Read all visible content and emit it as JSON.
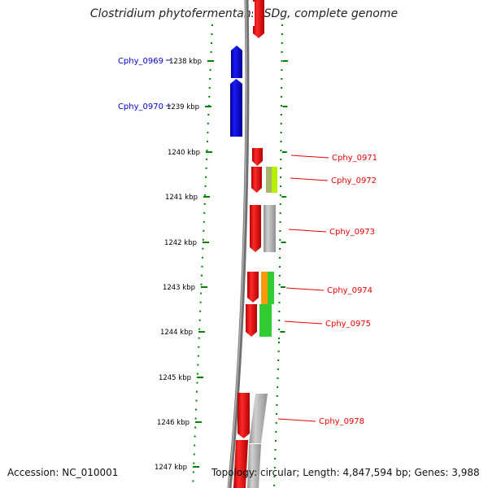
{
  "title": "Clostridium phytofermentans ISDg, complete genome",
  "accession": "Accession: NC_010001",
  "topology": "Topology: circular; Length: 4,847,594 bp; Genes: 3,988",
  "ticks": [
    "1238 kbp",
    "1239 kbp",
    "1240 kbp",
    "1241 kbp",
    "1242 kbp",
    "1243 kbp",
    "1244 kbp",
    "1245 kbp",
    "1246 kbp",
    "1247 kbp"
  ],
  "colors": {
    "forward_gene": "#ff0000",
    "reverse_gene": "#0000e0",
    "tick": "#008000",
    "backbone": "#808080",
    "label_reverse": "#0000cc",
    "label_forward": "#ee0000"
  },
  "genes": [
    {
      "label": "Cphy_0969",
      "strand": "reverse",
      "cog_colors": []
    },
    {
      "label": "Cphy_0970",
      "strand": "reverse",
      "cog_colors": []
    },
    {
      "label": "Cphy_0971",
      "strand": "forward",
      "cog_colors": []
    },
    {
      "label": "Cphy_0972",
      "strand": "forward",
      "cog_colors": [
        "#a6b46e",
        "#b4f000"
      ]
    },
    {
      "label": "Cphy_0973",
      "strand": "forward",
      "cog_colors": [
        "#b0b0b0"
      ]
    },
    {
      "label": "Cphy_0974",
      "strand": "forward",
      "cog_colors": [
        "#ff9a00",
        "#33cc33"
      ]
    },
    {
      "label": "Cphy_0975",
      "strand": "forward",
      "cog_colors": [
        "#33cc33"
      ]
    },
    {
      "label": "Cphy_0978",
      "strand": "forward",
      "cog_colors": [
        "#b0b0b0"
      ]
    }
  ]
}
